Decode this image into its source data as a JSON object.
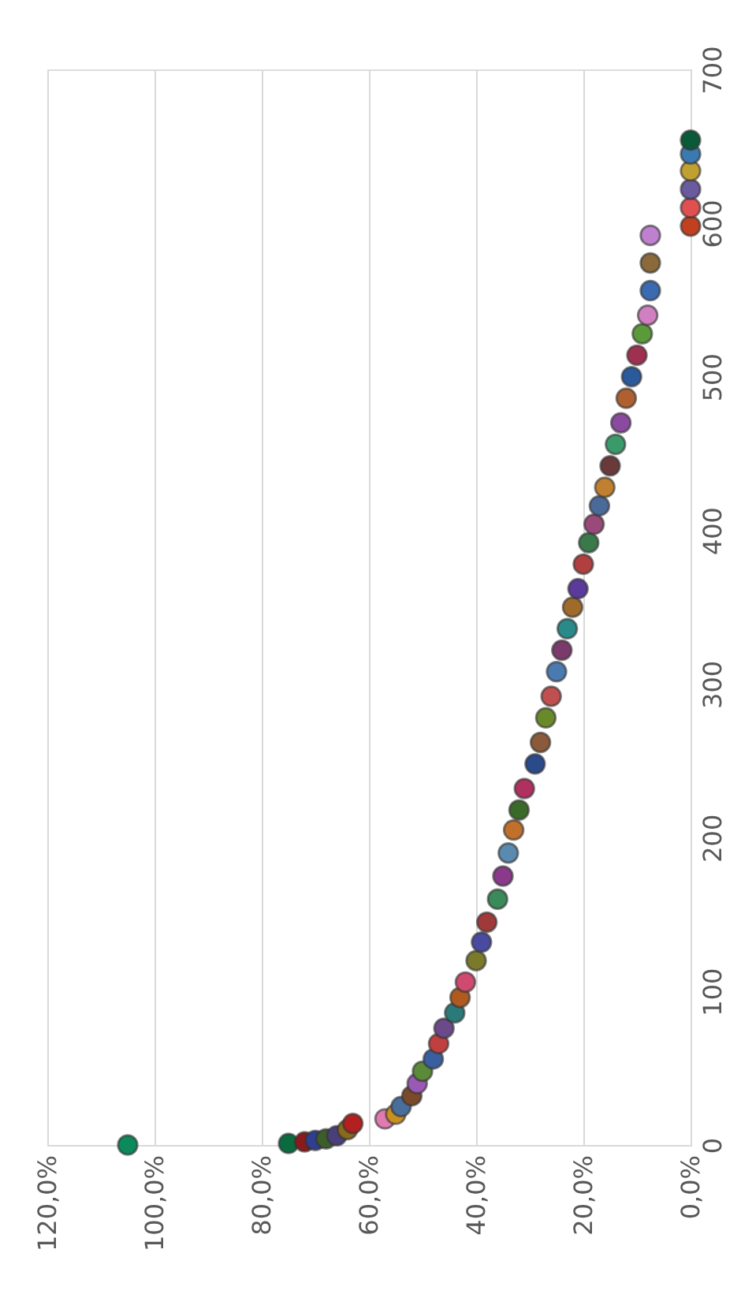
{
  "chart_data": {
    "type": "scatter",
    "marker": "circle",
    "grid": "x",
    "xlim": [
      120,
      0
    ],
    "ylim": [
      0,
      700
    ],
    "xticks": [
      {
        "value": 120,
        "label": "120,0%"
      },
      {
        "value": 100,
        "label": "100,0%"
      },
      {
        "value": 80,
        "label": "80,0%"
      },
      {
        "value": 60,
        "label": "60,0%"
      },
      {
        "value": 40,
        "label": "40,0%"
      },
      {
        "value": 20,
        "label": "20,0%"
      },
      {
        "value": 0,
        "label": "0,0%"
      }
    ],
    "yticks": [
      0,
      100,
      200,
      300,
      400,
      500,
      600,
      700
    ],
    "x": [
      105,
      75,
      72,
      70,
      68,
      66,
      64,
      63,
      57,
      55,
      54,
      52,
      51,
      50,
      48,
      47,
      46,
      44,
      43,
      42,
      40,
      39,
      38,
      36,
      35,
      34,
      33,
      32,
      31,
      29,
      28,
      27,
      26,
      25,
      24,
      23,
      22,
      21,
      20,
      19,
      18,
      17,
      16,
      15,
      14,
      13,
      12,
      11,
      10,
      9,
      8,
      7.5,
      7.5,
      7.5,
      0,
      0,
      0,
      0,
      0,
      0
    ],
    "values": [
      0,
      1,
      2,
      3,
      4,
      6,
      10,
      14,
      17,
      20,
      25,
      32,
      40,
      48,
      56,
      66,
      76,
      86,
      96,
      106,
      120,
      132,
      145,
      160,
      175,
      190,
      205,
      218,
      232,
      248,
      262,
      278,
      292,
      308,
      322,
      336,
      350,
      362,
      378,
      392,
      404,
      416,
      428,
      442,
      456,
      470,
      486,
      500,
      514,
      528,
      540,
      556,
      574,
      592,
      598,
      610,
      622,
      634,
      645,
      654
    ],
    "colors": [
      "#0c8a5b",
      "#0a6b3f",
      "#8b1a1a",
      "#2f3e8f",
      "#3b5e2b",
      "#4a3f7a",
      "#8a6a1a",
      "#b22020",
      "#e07ab0",
      "#c89020",
      "#4a6e9c",
      "#7a4a2a",
      "#9b59b6",
      "#5c8a3b",
      "#3a5fa0",
      "#c04040",
      "#6a4a8a",
      "#2a7a7a",
      "#b05a20",
      "#d04a70",
      "#7a7a2a",
      "#4a4aa0",
      "#a03a3a",
      "#3a8a5a",
      "#8a3a8a",
      "#5a8ab0",
      "#c0702a",
      "#3a6a2a",
      "#b03060",
      "#2a4a8a",
      "#8a5a3a",
      "#6a8a2a",
      "#c05050",
      "#4a7ab0",
      "#7a3a6a",
      "#2a8a8a",
      "#a06a2a",
      "#5a3a9a",
      "#b04040",
      "#3a7a4a",
      "#9a4a7a",
      "#4a6a9a",
      "#c08030",
      "#6a3a3a",
      "#3a9a6a",
      "#8a4aa0",
      "#b06030",
      "#2a5a9a",
      "#a03050",
      "#5a9a3a",
      "#d080c0",
      "#3a6ab0",
      "#8a6a3a",
      "#c080d0",
      "#c04020",
      "#e05050",
      "#6a5aa0",
      "#c0a030",
      "#3a7ab0",
      "#0a5a3a"
    ]
  }
}
